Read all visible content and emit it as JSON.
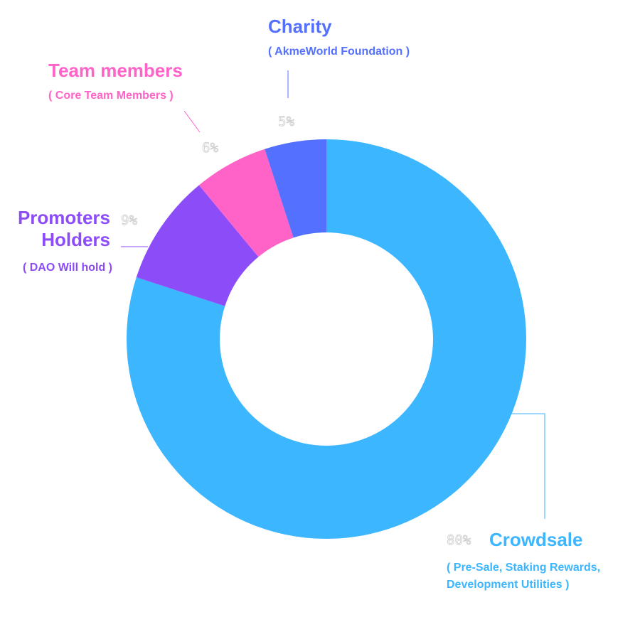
{
  "chart_data": {
    "type": "pie",
    "variant": "donut",
    "categories": [
      "Crowdsale",
      "Promoters Holders",
      "Team members",
      "Charity"
    ],
    "values": [
      80,
      9,
      6,
      5
    ],
    "value_labels": [
      "80%",
      "9%",
      "6%",
      "5%"
    ],
    "subtitles": [
      [
        "( Pre-Sale, Staking Rewards,",
        "Development Utilities )"
      ],
      [
        "( DAO Will hold )"
      ],
      [
        "( Core Team Members )"
      ],
      [
        "( AkmeWorld Foundation )"
      ]
    ],
    "label_lines": [
      [
        "Crowdsale"
      ],
      [
        "Promoters",
        "Holders"
      ],
      [
        "Team members"
      ],
      [
        "Charity"
      ]
    ],
    "colors": [
      "#3bb6ff",
      "#8c4cf8",
      "#ff63c8",
      "#5470ff"
    ],
    "title": "",
    "legend": "none"
  }
}
